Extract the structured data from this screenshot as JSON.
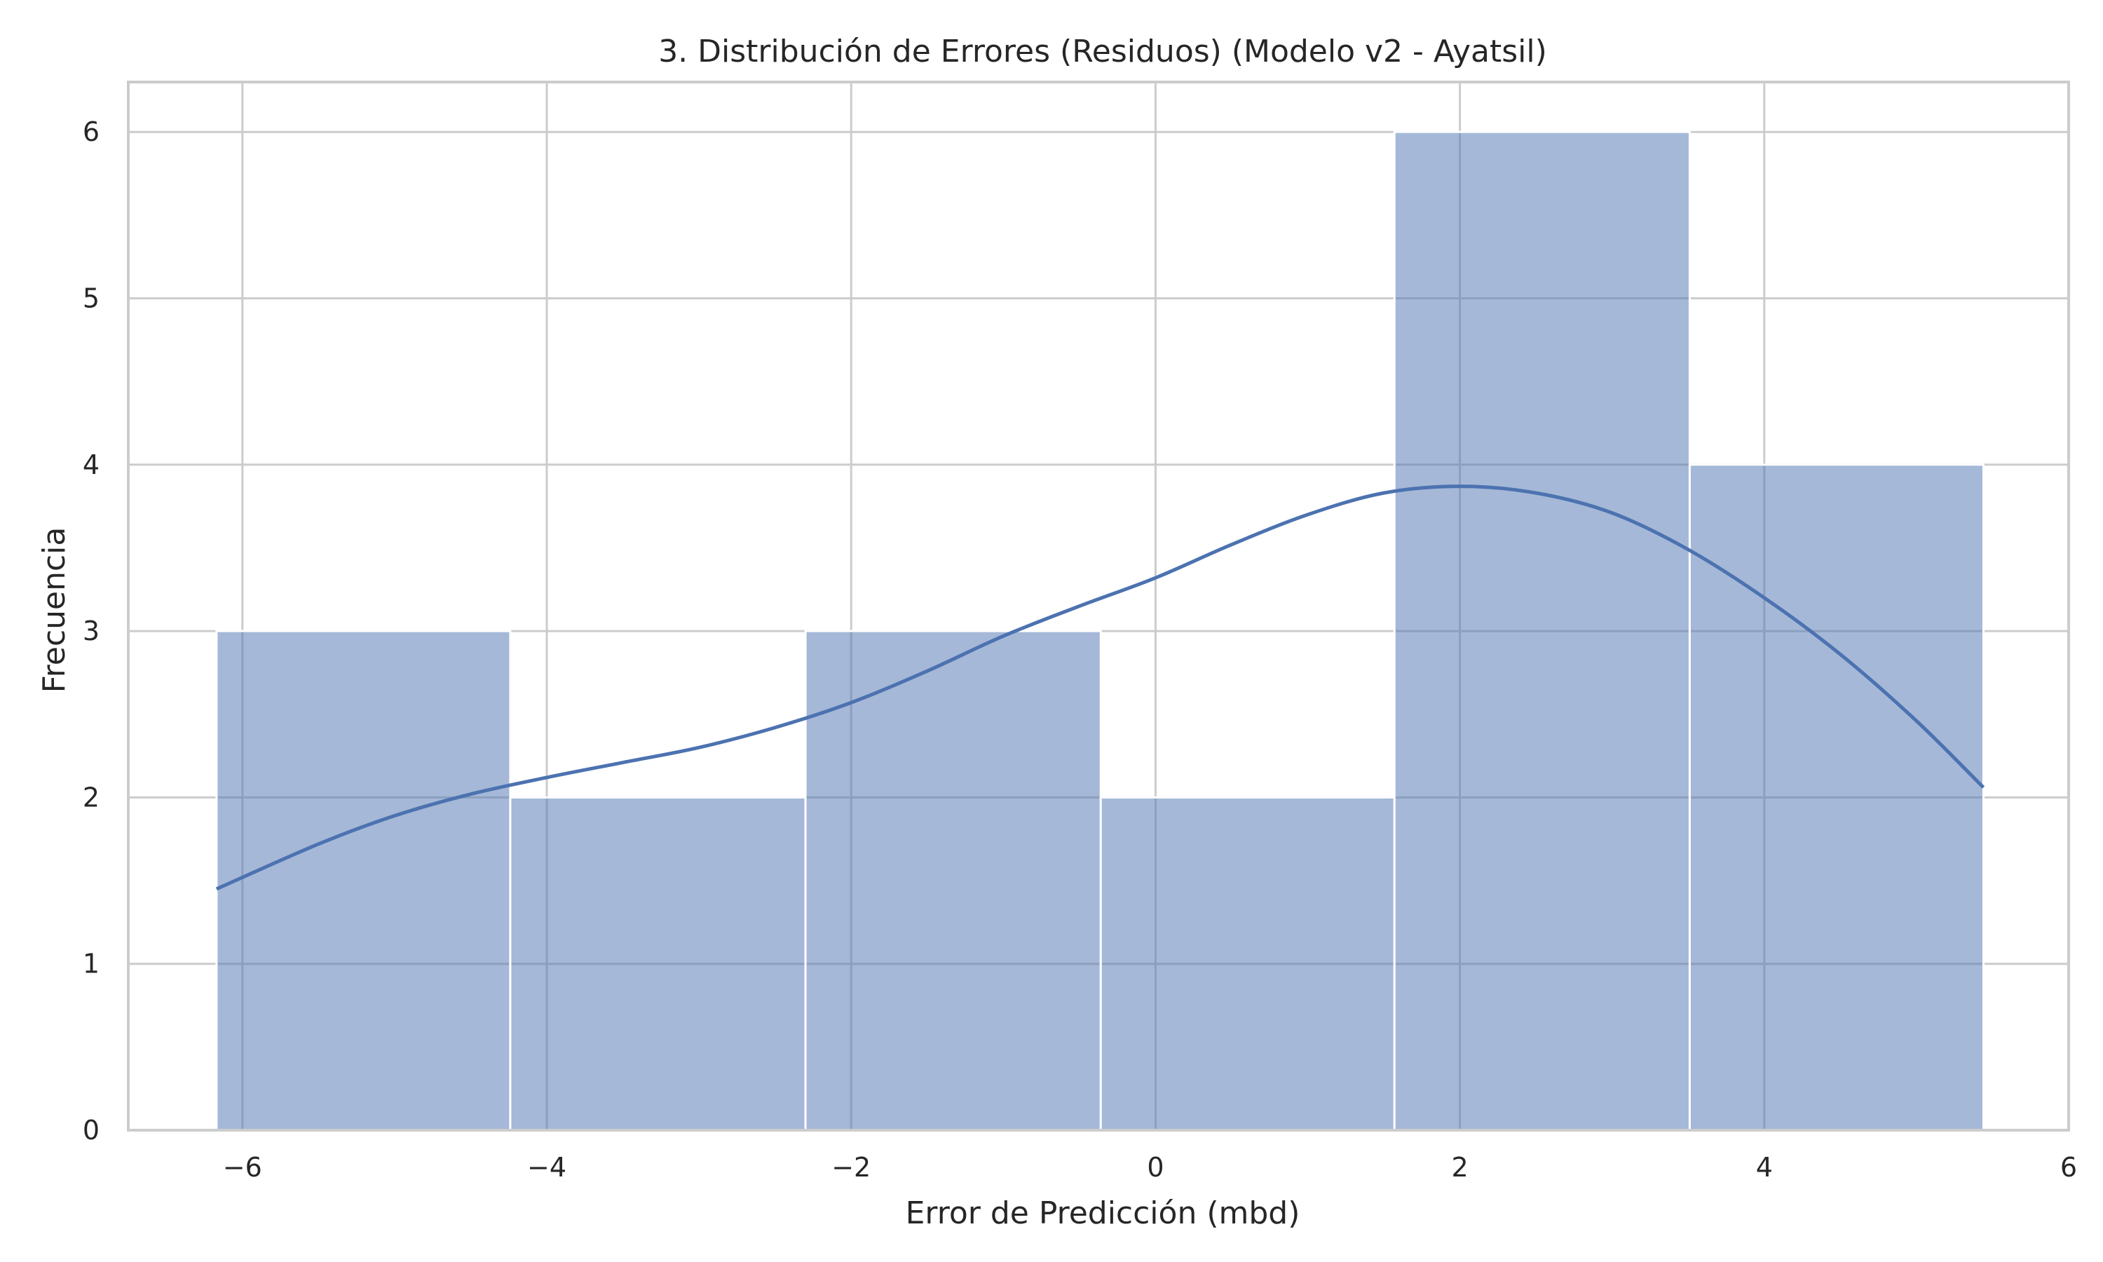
{
  "chart_data": {
    "type": "bar",
    "subtype": "histogram-with-kde",
    "title": "3. Distribución de Errores (Residuos) (Modelo v2 - Ayatsil)",
    "xlabel": "Error de Predicción (mbd)",
    "ylabel": "Frecuencia",
    "xlim": [
      -6.75,
      6.0
    ],
    "ylim": [
      0,
      6.3
    ],
    "xticks": [
      -6,
      -4,
      -2,
      0,
      2,
      4,
      6
    ],
    "xtick_labels": [
      "−6",
      "−4",
      "−2",
      "0",
      "2",
      "4",
      "6"
    ],
    "yticks": [
      0,
      1,
      2,
      3,
      4,
      5,
      6
    ],
    "ytick_labels": [
      "0",
      "1",
      "2",
      "3",
      "4",
      "5",
      "6"
    ],
    "grid": true,
    "bins": [
      {
        "x0": -6.17,
        "x1": -4.24,
        "count": 3
      },
      {
        "x0": -4.24,
        "x1": -2.3,
        "count": 2
      },
      {
        "x0": -2.3,
        "x1": -0.36,
        "count": 3
      },
      {
        "x0": -0.36,
        "x1": 1.57,
        "count": 2
      },
      {
        "x0": 1.57,
        "x1": 3.51,
        "count": 6
      },
      {
        "x0": 3.51,
        "x1": 5.44,
        "count": 4
      }
    ],
    "kde": {
      "x": [
        -6.17,
        -5.5,
        -5.0,
        -4.5,
        -4.0,
        -3.5,
        -3.0,
        -2.5,
        -2.0,
        -1.5,
        -1.0,
        -0.5,
        0.0,
        0.5,
        1.0,
        1.5,
        2.0,
        2.5,
        3.0,
        3.5,
        4.0,
        4.5,
        5.0,
        5.44
      ],
      "y": [
        1.45,
        1.72,
        1.89,
        2.02,
        2.12,
        2.21,
        2.3,
        2.42,
        2.57,
        2.76,
        2.97,
        3.15,
        3.32,
        3.52,
        3.7,
        3.83,
        3.87,
        3.83,
        3.71,
        3.49,
        3.2,
        2.86,
        2.46,
        2.06
      ]
    },
    "colors": {
      "bar_fill": "#4c72b0",
      "bar_opacity": "0.5",
      "kde_line": "#4c72b0",
      "grid": "#cccccc"
    }
  }
}
